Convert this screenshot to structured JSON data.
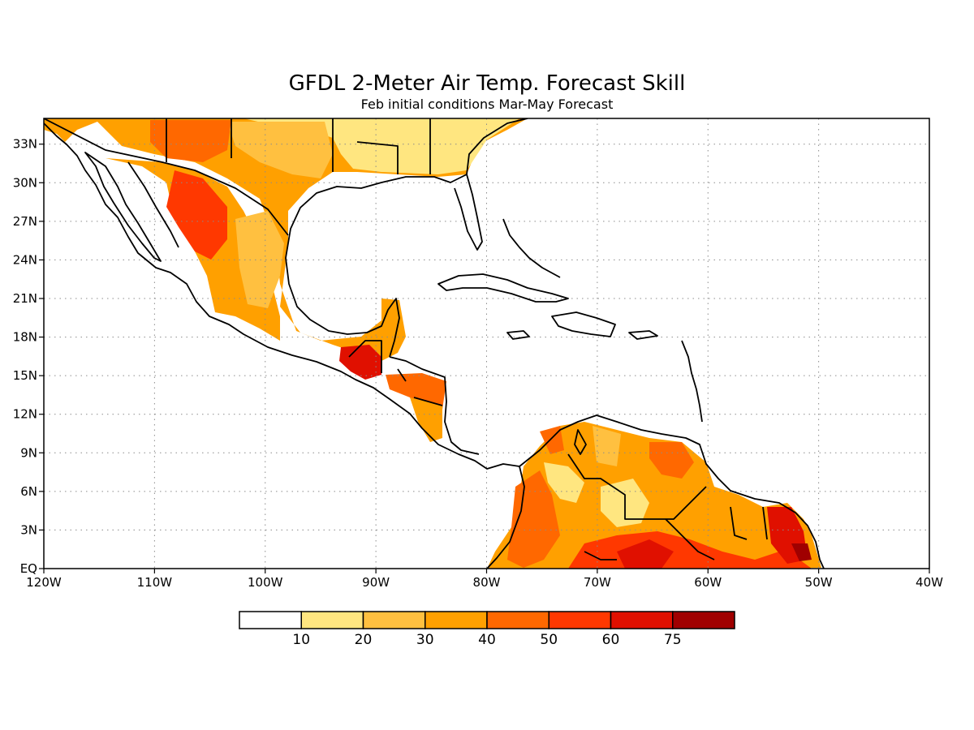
{
  "title": "GFDL 2-Meter Air Temp. Forecast Skill",
  "subtitle": "Feb initial conditions  Mar-May Forecast",
  "map": {
    "lon_range": [
      -120,
      -40
    ],
    "lat_range": [
      0,
      35
    ],
    "lon_ticks": [
      {
        "value": -120,
        "label": "120W"
      },
      {
        "value": -110,
        "label": "110W"
      },
      {
        "value": -100,
        "label": "100W"
      },
      {
        "value": -90,
        "label": "90W"
      },
      {
        "value": -80,
        "label": "80W"
      },
      {
        "value": -70,
        "label": "70W"
      },
      {
        "value": -60,
        "label": "60W"
      },
      {
        "value": -50,
        "label": "50W"
      },
      {
        "value": -40,
        "label": "40W"
      }
    ],
    "lat_ticks": [
      {
        "value": 0,
        "label": "EQ"
      },
      {
        "value": 3,
        "label": "3N"
      },
      {
        "value": 6,
        "label": "6N"
      },
      {
        "value": 9,
        "label": "9N"
      },
      {
        "value": 12,
        "label": "12N"
      },
      {
        "value": 15,
        "label": "15N"
      },
      {
        "value": 18,
        "label": "18N"
      },
      {
        "value": 21,
        "label": "21N"
      },
      {
        "value": 24,
        "label": "24N"
      },
      {
        "value": 27,
        "label": "27N"
      },
      {
        "value": 30,
        "label": "30N"
      },
      {
        "value": 33,
        "label": "33N"
      }
    ],
    "grid": "dotted",
    "colors": {
      "c10_20": "#ffe680",
      "c20_30": "#ffc040",
      "c30_40": "#ffa000",
      "c40_50": "#ff6800",
      "c50_60": "#ff3800",
      "c60_75": "#e01000",
      "c75_plus": "#a00000",
      "coast": "#000000"
    }
  },
  "colorbar": {
    "colors": [
      "#ffffff",
      "#ffe680",
      "#ffc040",
      "#ffa000",
      "#ff6800",
      "#ff3800",
      "#e01000",
      "#a00000"
    ],
    "labels": [
      "10",
      "20",
      "30",
      "40",
      "50",
      "60",
      "75"
    ]
  }
}
